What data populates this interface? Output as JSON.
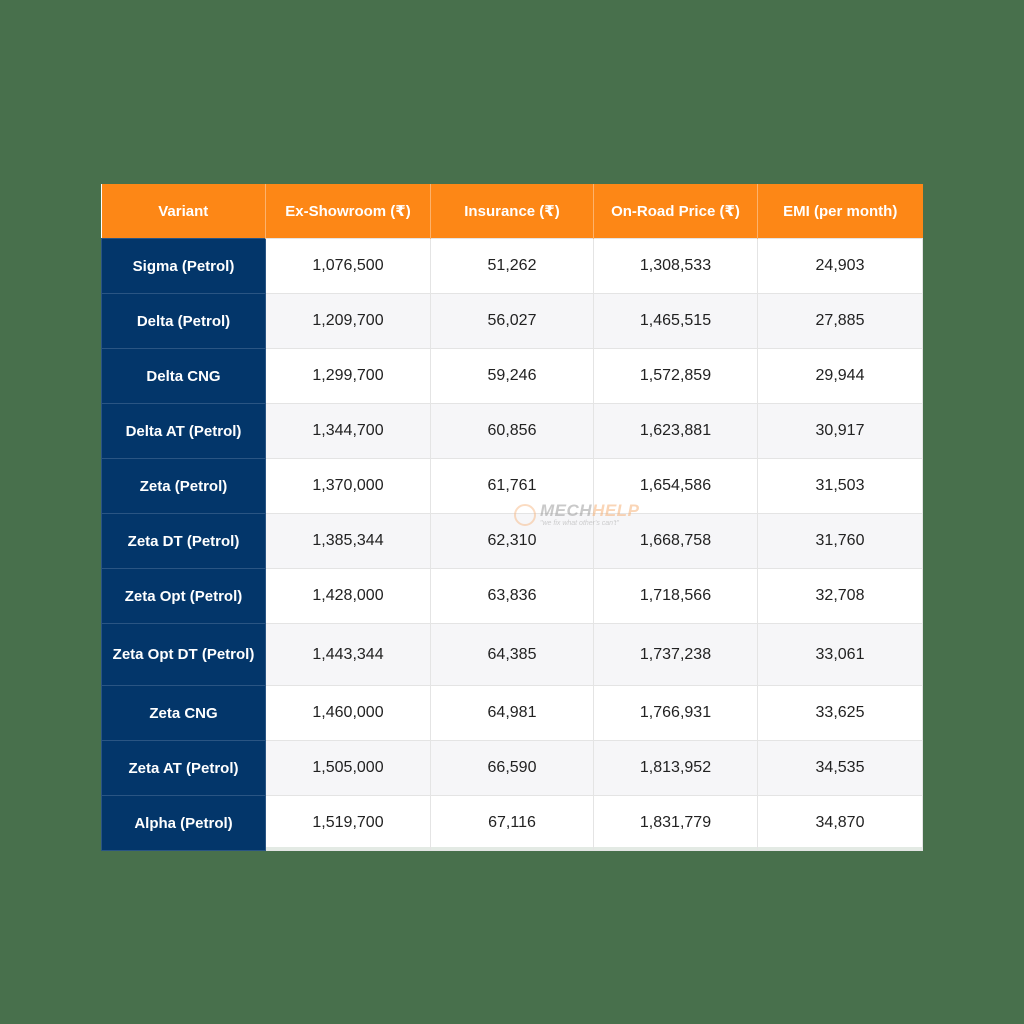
{
  "table": {
    "headers": [
      "Variant",
      "Ex-Showroom (₹)",
      "Insurance (₹)",
      "On-Road Price (₹)",
      "EMI (per month)"
    ],
    "rows": [
      {
        "variant": "Sigma (Petrol)",
        "ex_showroom": "1,076,500",
        "insurance": "51,262",
        "on_road": "1,308,533",
        "emi": "24,903"
      },
      {
        "variant": "Delta (Petrol)",
        "ex_showroom": "1,209,700",
        "insurance": "56,027",
        "on_road": "1,465,515",
        "emi": "27,885"
      },
      {
        "variant": "Delta CNG",
        "ex_showroom": "1,299,700",
        "insurance": "59,246",
        "on_road": "1,572,859",
        "emi": "29,944"
      },
      {
        "variant": "Delta AT (Petrol)",
        "ex_showroom": "1,344,700",
        "insurance": "60,856",
        "on_road": "1,623,881",
        "emi": "30,917"
      },
      {
        "variant": "Zeta (Petrol)",
        "ex_showroom": "1,370,000",
        "insurance": "61,761",
        "on_road": "1,654,586",
        "emi": "31,503"
      },
      {
        "variant": "Zeta DT (Petrol)",
        "ex_showroom": "1,385,344",
        "insurance": "62,310",
        "on_road": "1,668,758",
        "emi": "31,760"
      },
      {
        "variant": "Zeta Opt (Petrol)",
        "ex_showroom": "1,428,000",
        "insurance": "63,836",
        "on_road": "1,718,566",
        "emi": "32,708"
      },
      {
        "variant": "Zeta Opt DT (Petrol)",
        "ex_showroom": "1,443,344",
        "insurance": "64,385",
        "on_road": "1,737,238",
        "emi": "33,061"
      },
      {
        "variant": "Zeta CNG",
        "ex_showroom": "1,460,000",
        "insurance": "64,981",
        "on_road": "1,766,931",
        "emi": "33,625"
      },
      {
        "variant": "Zeta AT (Petrol)",
        "ex_showroom": "1,505,000",
        "insurance": "66,590",
        "on_road": "1,813,952",
        "emi": "34,535"
      },
      {
        "variant": "Alpha (Petrol)",
        "ex_showroom": "1,519,700",
        "insurance": "67,116",
        "on_road": "1,831,779",
        "emi": "34,870"
      }
    ]
  },
  "watermark": {
    "brand_part1": "MECH",
    "brand_part2": "HELP",
    "tagline": "\"we fix what other's can't\""
  },
  "colors": {
    "header_bg": "#fd8716",
    "variant_bg": "#03366a",
    "page_bg": "#48704c"
  }
}
